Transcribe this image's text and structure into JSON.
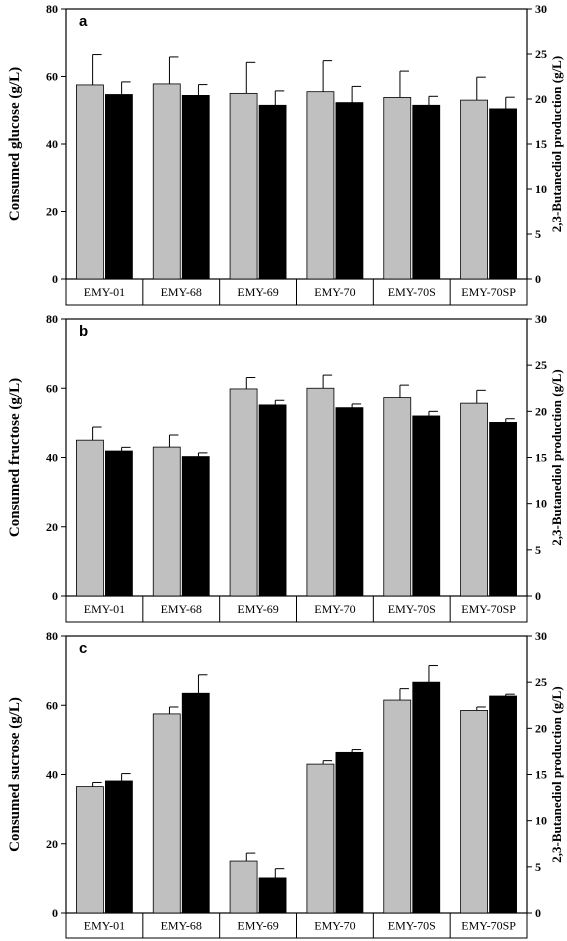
{
  "chart_data": [
    {
      "type": "bar",
      "panel_label": "a",
      "ylabel": "Consumed glucose (g/L)",
      "y2label": "2,3-Butanediol production (g/L)",
      "ylim": [
        0,
        80
      ],
      "y2lim": [
        0,
        30
      ],
      "yticks": [
        "0",
        "20",
        "40",
        "60",
        "80"
      ],
      "y2ticks": [
        "0",
        "5",
        "10",
        "15",
        "20",
        "25",
        "30"
      ],
      "categories": [
        "EMY-01",
        "EMY-68",
        "EMY-69",
        "EMY-70",
        "EMY-70S",
        "EMY-70SP"
      ],
      "series": [
        {
          "axis": "left",
          "color": "#c0c0c0",
          "values": [
            57.5,
            57.8,
            55.0,
            55.5,
            53.8,
            53.0
          ],
          "errors": [
            9.0,
            8.0,
            9.2,
            9.2,
            7.8,
            6.8
          ]
        },
        {
          "axis": "right",
          "color": "#000000",
          "values": [
            20.5,
            20.4,
            19.3,
            19.6,
            19.3,
            18.9
          ],
          "errors": [
            1.4,
            1.2,
            1.6,
            1.8,
            1.0,
            1.3
          ]
        }
      ]
    },
    {
      "type": "bar",
      "panel_label": "b",
      "ylabel": "Consumed fructose (g/L)",
      "y2label": "2,3-Butanediol production (g/L)",
      "ylim": [
        0,
        80
      ],
      "y2lim": [
        0,
        30
      ],
      "yticks": [
        "0",
        "20",
        "40",
        "60",
        "80"
      ],
      "y2ticks": [
        "0",
        "5",
        "10",
        "15",
        "20",
        "25",
        "30"
      ],
      "categories": [
        "EMY-01",
        "EMY-68",
        "EMY-69",
        "EMY-70",
        "EMY-70S",
        "EMY-70SP"
      ],
      "series": [
        {
          "axis": "left",
          "color": "#c0c0c0",
          "values": [
            45.0,
            43.0,
            59.8,
            60.0,
            57.3,
            55.7
          ],
          "errors": [
            3.8,
            3.5,
            3.3,
            3.8,
            3.6,
            3.7
          ]
        },
        {
          "axis": "right",
          "color": "#000000",
          "values": [
            15.7,
            15.1,
            20.7,
            20.4,
            19.5,
            18.8
          ],
          "errors": [
            0.4,
            0.4,
            0.5,
            0.4,
            0.5,
            0.4
          ]
        }
      ]
    },
    {
      "type": "bar",
      "panel_label": "c",
      "ylabel": "Consumed sucrose (g/L)",
      "y2label": "2,3-Butanediol production (g/L)",
      "ylim": [
        0,
        80
      ],
      "y2lim": [
        0,
        30
      ],
      "yticks": [
        "0",
        "20",
        "40",
        "60",
        "80"
      ],
      "y2ticks": [
        "0",
        "5",
        "10",
        "15",
        "20",
        "25",
        "30"
      ],
      "categories": [
        "EMY-01",
        "EMY-68",
        "EMY-69",
        "EMY-70",
        "EMY-70S",
        "EMY-70SP"
      ],
      "series": [
        {
          "axis": "left",
          "color": "#c0c0c0",
          "values": [
            36.5,
            57.5,
            15.0,
            43.0,
            61.5,
            58.5
          ],
          "errors": [
            1.2,
            2.0,
            2.3,
            1.0,
            3.3,
            1.0
          ]
        },
        {
          "axis": "right",
          "color": "#000000",
          "values": [
            14.3,
            23.8,
            3.8,
            17.4,
            25.0,
            23.5
          ],
          "errors": [
            0.8,
            2.0,
            1.0,
            0.3,
            1.8,
            0.2
          ]
        }
      ]
    }
  ]
}
